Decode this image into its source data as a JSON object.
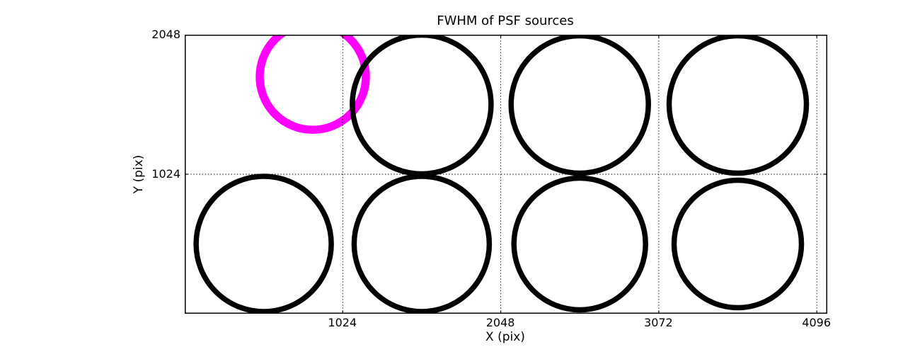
{
  "chart_data": {
    "type": "scatter",
    "title": "FWHM of PSF sources",
    "xlabel": "X (pix)",
    "ylabel": "Y (pix)",
    "xlim": [
      0,
      4164
    ],
    "ylim": [
      0,
      2048
    ],
    "xticks": [
      "1024",
      "2048",
      "3072",
      "4096"
    ],
    "xtick_values": [
      1024,
      2048,
      3072,
      4096
    ],
    "yticks": [
      "1024",
      "2048"
    ],
    "ytick_values": [
      1024,
      2048
    ],
    "grid": "dotted",
    "grid_color": "#000000",
    "legend_position": "none",
    "marker_style": "open-circle",
    "colors": {
      "default_marker": "#000000",
      "highlight_marker": "#ff00ff",
      "axes": "#000000"
    },
    "points": [
      {
        "name": "highlighted-source",
        "x": 830,
        "y": 1740,
        "marker_radius_px": 75,
        "stroke_px": 11.5,
        "color": "#ff00ff"
      },
      {
        "name": "psf-source",
        "x": 1536,
        "y": 1536,
        "marker_radius_px": 98,
        "stroke_px": 7.5,
        "color": "#000000"
      },
      {
        "name": "psf-source",
        "x": 2560,
        "y": 1536,
        "marker_radius_px": 97,
        "stroke_px": 7.5,
        "color": "#000000"
      },
      {
        "name": "psf-source",
        "x": 3584,
        "y": 1536,
        "marker_radius_px": 97,
        "stroke_px": 7.5,
        "color": "#000000"
      },
      {
        "name": "psf-source",
        "x": 512,
        "y": 512,
        "marker_radius_px": 95.5,
        "stroke_px": 7.5,
        "color": "#000000"
      },
      {
        "name": "psf-source",
        "x": 1536,
        "y": 512,
        "marker_radius_px": 95.5,
        "stroke_px": 7.5,
        "color": "#000000"
      },
      {
        "name": "psf-source",
        "x": 2560,
        "y": 512,
        "marker_radius_px": 93,
        "stroke_px": 7.5,
        "color": "#000000"
      },
      {
        "name": "psf-source",
        "x": 3584,
        "y": 512,
        "marker_radius_px": 90,
        "stroke_px": 7.5,
        "color": "#000000"
      }
    ]
  }
}
